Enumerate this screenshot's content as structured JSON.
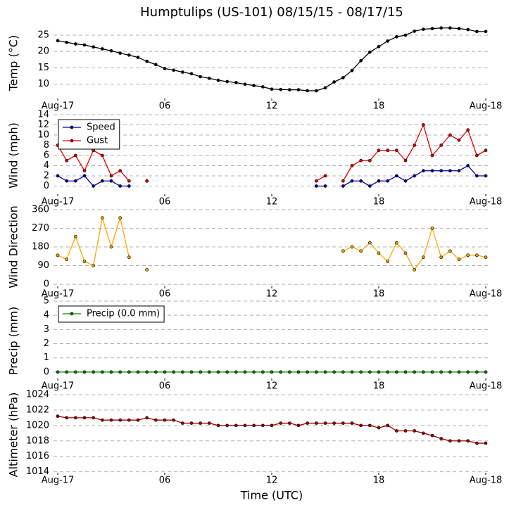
{
  "chart_data": [
    {
      "type": "line",
      "title": "Humptulips (US-101) 08/15/15 - 08/17/15",
      "y_label": "Temp (°C)",
      "x": [
        0,
        0.5,
        1,
        1.5,
        2,
        2.5,
        3,
        3.5,
        4,
        4.5,
        5,
        5.5,
        6,
        6.5,
        7,
        7.5,
        8,
        8.5,
        9,
        9.5,
        10,
        10.5,
        11,
        11.5,
        12,
        12.5,
        13,
        13.5,
        14,
        14.5,
        15,
        15.5,
        16,
        16.5,
        17,
        17.5,
        18,
        18.5,
        19,
        19.5,
        20,
        20.5,
        21,
        21.5,
        22,
        22.5,
        23,
        23.5,
        24
      ],
      "values": [
        23.3,
        22.8,
        22.3,
        22.0,
        21.4,
        20.8,
        20.2,
        19.5,
        18.9,
        18.2,
        17.0,
        16.0,
        14.8,
        14.3,
        13.7,
        13.2,
        12.3,
        11.8,
        11.2,
        10.8,
        10.5,
        10.0,
        9.6,
        9.2,
        8.5,
        8.4,
        8.3,
        8.3,
        8.0,
        8.0,
        8.9,
        10.7,
        12.0,
        14.2,
        17.2,
        19.8,
        21.5,
        23.2,
        24.5,
        25.0,
        26.2,
        26.8,
        27.0,
        27.2,
        27.2,
        27.0,
        26.7,
        26.1,
        26.1
      ],
      "color": "#000000",
      "xlim": [
        0,
        24
      ],
      "xticks": [
        {
          "value": 0,
          "label": "Aug-17"
        },
        {
          "value": 6,
          "label": "06"
        },
        12,
        18,
        {
          "value": 24,
          "label": "Aug-18"
        }
      ],
      "ylim": [
        5,
        28
      ],
      "yticks": [
        10,
        15,
        20,
        25
      ],
      "grid": true
    },
    {
      "type": "line",
      "y_label": "Wind (mph)",
      "x": [
        0,
        0.5,
        1,
        1.5,
        2,
        2.5,
        3,
        3.5,
        4,
        4.5,
        5,
        5.5,
        6,
        6.5,
        7,
        7.5,
        8,
        8.5,
        9,
        9.5,
        10,
        10.5,
        11,
        11.5,
        12,
        12.5,
        13,
        13.5,
        14,
        14.5,
        15,
        15.5,
        16,
        16.5,
        17,
        17.5,
        18,
        18.5,
        19,
        19.5,
        20,
        20.5,
        21,
        21.5,
        22,
        22.5,
        23,
        23.5,
        24
      ],
      "series": [
        {
          "name": "Speed",
          "color": "#0000a0",
          "values": [
            2,
            1,
            1,
            2,
            0,
            1,
            1,
            0,
            0,
            null,
            1,
            null,
            null,
            null,
            null,
            null,
            null,
            null,
            null,
            null,
            null,
            null,
            null,
            null,
            null,
            null,
            null,
            null,
            null,
            0,
            0,
            null,
            0,
            1,
            1,
            0,
            1,
            1,
            2,
            1,
            2,
            3,
            3,
            3,
            3,
            3,
            4,
            2,
            2
          ]
        },
        {
          "name": "Gust",
          "color": "#e00000",
          "values": [
            8,
            5,
            6,
            3,
            7,
            6,
            2,
            3,
            1,
            null,
            1,
            null,
            null,
            null,
            null,
            null,
            null,
            null,
            null,
            null,
            null,
            null,
            null,
            null,
            null,
            null,
            null,
            null,
            null,
            1,
            2,
            null,
            1,
            4,
            5,
            5,
            7,
            7,
            7,
            5,
            8,
            12,
            6,
            8,
            10,
            9,
            11,
            6,
            7
          ]
        }
      ],
      "legend": "upper left",
      "xlim": [
        0,
        24
      ],
      "xticks": [
        {
          "value": 0,
          "label": "Aug-17"
        },
        {
          "value": 6,
          "label": "06"
        },
        12,
        18,
        {
          "value": 24,
          "label": "Aug-18"
        }
      ],
      "ylim": [
        -2,
        14
      ],
      "yticks": [
        0,
        2,
        4,
        6,
        8,
        10,
        12,
        14
      ],
      "grid": true
    },
    {
      "type": "line",
      "y_label": "Wind Direction",
      "x": [
        0,
        0.5,
        1,
        1.5,
        2,
        2.5,
        3,
        3.5,
        4,
        4.5,
        5,
        5.5,
        6,
        6.5,
        7,
        7.5,
        8,
        8.5,
        9,
        9.5,
        10,
        10.5,
        11,
        11.5,
        12,
        12.5,
        13,
        13.5,
        14,
        14.5,
        15,
        15.5,
        16,
        16.5,
        17,
        17.5,
        18,
        18.5,
        19,
        19.5,
        20,
        20.5,
        21,
        21.5,
        22,
        22.5,
        23,
        23.5,
        24
      ],
      "values": [
        140,
        120,
        230,
        110,
        90,
        320,
        180,
        320,
        130,
        null,
        70,
        null,
        null,
        null,
        null,
        null,
        null,
        null,
        null,
        null,
        null,
        null,
        null,
        null,
        null,
        null,
        null,
        null,
        null,
        null,
        null,
        null,
        160,
        180,
        160,
        200,
        150,
        110,
        200,
        150,
        70,
        130,
        270,
        130,
        160,
        120,
        140,
        140,
        130
      ],
      "color": "#ffa500",
      "xlim": [
        0,
        24
      ],
      "xticks": [
        {
          "value": 0,
          "label": "Aug-17"
        },
        {
          "value": 6,
          "label": "06"
        },
        12,
        18,
        {
          "value": 24,
          "label": "Aug-18"
        }
      ],
      "ylim": [
        -20,
        380
      ],
      "yticks": [
        0,
        90,
        180,
        270,
        360
      ],
      "grid": true
    },
    {
      "type": "line",
      "y_label": "Precip (mm)",
      "x": [
        0,
        0.5,
        1,
        1.5,
        2,
        2.5,
        3,
        3.5,
        4,
        4.5,
        5,
        5.5,
        6,
        6.5,
        7,
        7.5,
        8,
        8.5,
        9,
        9.5,
        10,
        10.5,
        11,
        11.5,
        12,
        12.5,
        13,
        13.5,
        14,
        14.5,
        15,
        15.5,
        16,
        16.5,
        17,
        17.5,
        18,
        18.5,
        19,
        19.5,
        20,
        20.5,
        21,
        21.5,
        22,
        22.5,
        23,
        23.5,
        24
      ],
      "series": [
        {
          "name": "Precip (0.0 mm)",
          "color": "#008000",
          "values": [
            0,
            0,
            0,
            0,
            0,
            0,
            0,
            0,
            0,
            0,
            0,
            0,
            0,
            0,
            0,
            0,
            0,
            0,
            0,
            0,
            0,
            0,
            0,
            0,
            0,
            0,
            0,
            0,
            0,
            0,
            0,
            0,
            0,
            0,
            0,
            0,
            0,
            0,
            0,
            0,
            0,
            0,
            0,
            0,
            0,
            0,
            0,
            0,
            0
          ]
        }
      ],
      "legend": "upper left",
      "xlim": [
        0,
        24
      ],
      "xticks": [
        {
          "value": 0,
          "label": "Aug-17"
        },
        {
          "value": 6,
          "label": "06"
        },
        12,
        18,
        {
          "value": 24,
          "label": "Aug-18"
        }
      ],
      "ylim": [
        -0.6,
        5
      ],
      "yticks": [
        0,
        1,
        2,
        3,
        4,
        5
      ],
      "grid": true
    },
    {
      "type": "line",
      "y_label": "Altimeter (hPa)",
      "x_label": "Time (UTC)",
      "x": [
        0,
        0.5,
        1,
        1.5,
        2,
        2.5,
        3,
        3.5,
        4,
        4.5,
        5,
        5.5,
        6,
        6.5,
        7,
        7.5,
        8,
        8.5,
        9,
        9.5,
        10,
        10.5,
        11,
        11.5,
        12,
        12.5,
        13,
        13.5,
        14,
        14.5,
        15,
        15.5,
        16,
        16.5,
        17,
        17.5,
        18,
        18.5,
        19,
        19.5,
        20,
        20.5,
        21,
        21.5,
        22,
        22.5,
        23,
        23.5,
        24
      ],
      "values": [
        1021.2,
        1021,
        1021,
        1021,
        1021,
        1020.7,
        1020.7,
        1020.7,
        1020.7,
        1020.7,
        1021,
        1020.7,
        1020.7,
        1020.7,
        1020.3,
        1020.3,
        1020.3,
        1020.3,
        1020,
        1020,
        1020,
        1020,
        1020,
        1020,
        1020,
        1020.3,
        1020.3,
        1020,
        1020.3,
        1020.3,
        1020.3,
        1020.3,
        1020.3,
        1020.3,
        1020,
        1020,
        1019.7,
        1020,
        1019.3,
        1019.3,
        1019.3,
        1019,
        1018.7,
        1018.3,
        1018,
        1018,
        1018,
        1017.7,
        1017.7
      ],
      "color": "#a00000",
      "xlim": [
        0,
        24
      ],
      "xticks": [
        {
          "value": 0,
          "label": "Aug-17"
        },
        {
          "value": 6,
          "label": "06"
        },
        12,
        18,
        {
          "value": 24,
          "label": "Aug-18"
        }
      ],
      "ylim": [
        1013.6,
        1024
      ],
      "yticks": [
        1014,
        1016,
        1018,
        1020,
        1022,
        1024
      ],
      "grid": true
    }
  ]
}
